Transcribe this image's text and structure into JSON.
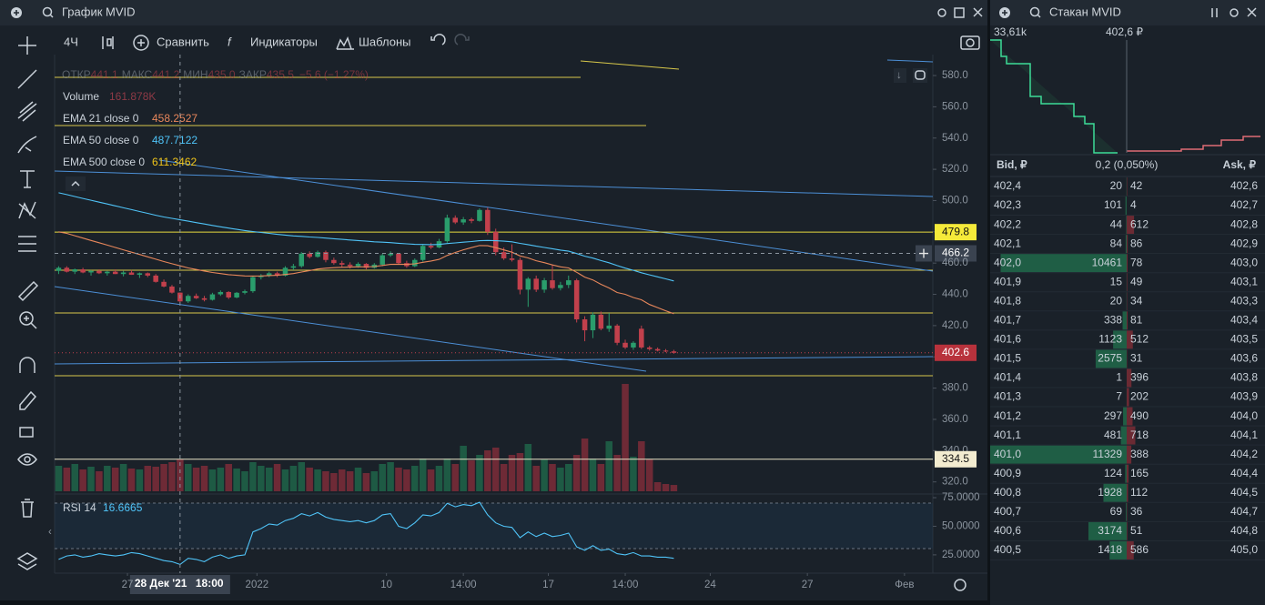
{
  "chart_widget": {
    "title": "График MVID",
    "toolbar": {
      "interval": "4Ч",
      "compare": "Сравнить",
      "indicators": "Индикаторы",
      "templates": "Шаблоны"
    },
    "legend": {
      "open_label": "ОТКР",
      "open": "441.1",
      "high_label": "МАКС",
      "high": "441.2",
      "low_label": "МИН",
      "low": "435.0",
      "close_label": "ЗАКР",
      "close": "435.5",
      "change": "−5.6 (−1.27%)"
    }
  },
  "chart_data": {
    "type": "candlestick",
    "x": [
      0,
      1,
      2,
      3,
      4,
      5,
      6,
      7,
      8,
      9,
      10,
      11,
      12,
      13,
      14,
      15,
      16,
      17,
      18,
      19,
      20,
      21,
      22,
      23,
      24,
      25,
      26,
      27,
      28,
      29,
      30,
      31,
      32,
      33,
      34,
      35,
      36,
      37,
      38,
      39,
      40,
      41,
      42,
      43,
      44,
      45,
      46,
      47,
      48,
      49,
      50,
      51,
      52,
      53,
      54,
      55,
      56,
      57,
      58,
      59,
      60,
      61,
      62,
      63,
      64,
      65,
      66,
      67,
      68,
      69,
      70,
      71,
      72,
      73,
      74,
      75,
      76
    ],
    "open": [
      455,
      457,
      454.5,
      456,
      454,
      455,
      453.5,
      454.5,
      453,
      454,
      452.5,
      453.5,
      452,
      448,
      445,
      441.1,
      435.5,
      439,
      437.5,
      436.5,
      440,
      441.5,
      438,
      441,
      442,
      451,
      452,
      453.5,
      452,
      457,
      458,
      466,
      464,
      467,
      462,
      460,
      459,
      458,
      459.5,
      457,
      459,
      465,
      466,
      460,
      458,
      462,
      471,
      470,
      474,
      489,
      486,
      488,
      487,
      494,
      480,
      467,
      463,
      462,
      443,
      450,
      443,
      449,
      444,
      446,
      449,
      424,
      417,
      427,
      418,
      420,
      409,
      406,
      418,
      406,
      405,
      404,
      403.5
    ],
    "high": [
      458,
      458,
      456.5,
      457,
      455.5,
      456,
      455,
      456,
      455,
      455.5,
      454,
      454,
      453,
      449.5,
      446,
      441.2,
      440,
      440.5,
      439,
      441,
      442.5,
      442,
      441.5,
      443,
      452,
      453,
      454.5,
      454.5,
      458,
      459.5,
      467,
      467.5,
      468,
      468,
      463.5,
      461.5,
      460.5,
      460.5,
      460,
      460,
      466,
      467.5,
      466.5,
      461.5,
      463,
      472,
      473,
      475.5,
      491,
      490.5,
      489.5,
      489,
      495,
      495.5,
      482,
      470,
      472,
      463.5,
      451,
      452,
      450.5,
      459,
      448,
      452,
      450,
      426,
      428.5,
      429,
      428,
      421,
      411,
      410,
      420,
      407,
      406,
      405,
      404.5
    ],
    "low": [
      453,
      454,
      453,
      453.5,
      452,
      453,
      452,
      453,
      451.5,
      452.5,
      450.5,
      451,
      447.5,
      444.5,
      440.5,
      435,
      434.5,
      437,
      435.5,
      436,
      439,
      437,
      437.5,
      440,
      441,
      449.5,
      451,
      451,
      451.5,
      455.5,
      457,
      463,
      463.5,
      460.5,
      459,
      457.5,
      456.5,
      457,
      456,
      456.5,
      458,
      464,
      459,
      457,
      457.5,
      461,
      469,
      469.5,
      473,
      485,
      484.5,
      485.5,
      486.5,
      478,
      465,
      462,
      461,
      440,
      432,
      441.5,
      441,
      443,
      442.5,
      444,
      422,
      410,
      412,
      417,
      416,
      407.5,
      405,
      404.5,
      405,
      404,
      403.5,
      403,
      402
    ],
    "close": [
      457,
      454.5,
      456,
      454,
      455,
      453.5,
      454.5,
      453,
      454,
      452.5,
      453.5,
      452,
      448,
      445,
      441.1,
      435.5,
      439,
      437.5,
      436.5,
      440,
      441.5,
      438,
      441,
      442,
      451,
      452,
      453.5,
      452,
      457,
      458,
      466,
      464,
      467,
      462,
      460,
      459,
      458,
      459.5,
      457,
      459,
      465,
      466,
      460,
      458,
      462,
      471,
      470,
      474,
      489,
      486,
      488,
      487,
      494,
      480,
      467,
      463,
      462,
      443,
      450,
      443,
      449,
      444,
      446,
      449,
      424,
      417,
      427,
      418,
      420,
      409,
      406,
      409,
      406,
      405,
      404,
      403.5,
      402.6
    ],
    "up_color": "#2a9d6c",
    "down_color": "#c2404c",
    "xlim": [
      -0.5,
      108
    ],
    "xticks": [
      {
        "value": 8.5,
        "label": "27"
      },
      {
        "value": 24.5,
        "label": "2022"
      },
      {
        "value": 40.5,
        "label": "10"
      },
      {
        "value": 50,
        "label": "14:00"
      },
      {
        "value": 60.5,
        "label": "17"
      },
      {
        "value": 70,
        "label": "14:00"
      },
      {
        "value": 80.5,
        "label": "24"
      },
      {
        "value": 92.5,
        "label": "27"
      },
      {
        "value": 104.5,
        "label": "Фев"
      }
    ],
    "ylim": [
      314,
      593.4
    ],
    "yticks": [
      {
        "value": 580,
        "label": "580.0"
      },
      {
        "value": 560,
        "label": "560.0"
      },
      {
        "value": 540,
        "label": "540.0"
      },
      {
        "value": 520,
        "label": "520.0"
      },
      {
        "value": 500,
        "label": "500.0"
      },
      {
        "value": 480,
        "label": "480.0"
      },
      {
        "value": 460,
        "label": "460.0"
      },
      {
        "value": 440,
        "label": "440.0"
      },
      {
        "value": 420,
        "label": "420.0"
      },
      {
        "value": 400,
        "label": "400.0"
      },
      {
        "value": 380,
        "label": "380.0"
      },
      {
        "value": 360,
        "label": "360.0"
      },
      {
        "value": 340,
        "label": "340.0"
      },
      {
        "value": 320,
        "label": "320.0"
      }
    ],
    "levels": [
      479.8,
      334.5
    ],
    "crosshair": {
      "x": 15,
      "x_label": "28 Дек '21",
      "time_label": "18:00",
      "price": 466.2
    },
    "volume": {
      "name": "Volume",
      "value_label": "161.878K",
      "up_color": "#1e5a44",
      "down_color": "#6e2a36",
      "values": [
        652400,
        605800,
        699000,
        559200,
        629100,
        512600,
        652400,
        605800,
        699000,
        582500,
        559200,
        652400,
        629100,
        699000,
        745600,
        815500,
        699000,
        605800,
        652400,
        559200,
        605800,
        699000,
        582500,
        512600,
        745600,
        652400,
        605800,
        699000,
        559200,
        652400,
        745600,
        605800,
        559200,
        512600,
        466000,
        559200,
        512600,
        605800,
        466000,
        512600,
        699000,
        745600,
        605800,
        559200,
        652400,
        838800,
        559200,
        652400,
        838800,
        699000,
        1165000,
        792200,
        932000,
        1048500,
        1118400,
        699000,
        932000,
        978600,
        1211600,
        652400,
        815500,
        699000,
        605800,
        699000,
        932000,
        1351400,
        838800,
        699000,
        1281500,
        932000,
        2749400,
        885400,
        1281500,
        815500,
        233000,
        186400,
        161878
      ]
    },
    "ema": [
      {
        "name": "EMA 21 close 0",
        "value_label": "458.2527",
        "color": "#e8875b",
        "values": [
          480,
          479,
          477.5,
          476,
          474.5,
          473,
          471.5,
          470,
          468.5,
          467,
          465.5,
          464,
          462.5,
          461,
          459.6,
          458.2527,
          456.9,
          455.9,
          454.9,
          454,
          453.3,
          452.6,
          452.2,
          451.8,
          451.7,
          451.8,
          452,
          452.2,
          452.7,
          453.3,
          454.3,
          455.2,
          456.2,
          456.7,
          457.1,
          457.3,
          457.4,
          457.6,
          457.6,
          457.8,
          458.5,
          459.2,
          459.3,
          459.2,
          459.5,
          460.5,
          461.3,
          462.4,
          464.9,
          466.8,
          468.5,
          469.9,
          471.2,
          471.1,
          469.9,
          468.4,
          467,
          464.6,
          463.3,
          461.5,
          460.3,
          458.8,
          457.6,
          456.9,
          454.1,
          451,
          449.2,
          446.4,
          444.1,
          441.2,
          440,
          438,
          436.5,
          433.5,
          431.5,
          429.5,
          427.6
        ]
      },
      {
        "name": "EMA 50 close 0",
        "value_label": "487.7122",
        "color": "#4fc3f7",
        "values": [
          505,
          503.8,
          502.6,
          501.4,
          500.2,
          499,
          497.8,
          496.6,
          495.4,
          494.2,
          493,
          491.8,
          490.6,
          489.5,
          488.6,
          487.7122,
          486.8,
          485.9,
          485,
          484.1,
          483.2,
          482.4,
          481.6,
          480.8,
          480.2,
          479.6,
          479,
          478.4,
          477.9,
          477.4,
          477.1,
          476.7,
          476.4,
          476,
          475.6,
          475.2,
          474.8,
          474.4,
          474,
          473.6,
          473.4,
          473.1,
          472.7,
          472.3,
          472,
          471.9,
          471.8,
          471.9,
          472.5,
          472.9,
          473.4,
          473.8,
          474.3,
          474.5,
          474.3,
          474,
          473.6,
          472.6,
          471.8,
          470.8,
          470,
          469.2,
          468.3,
          467.6,
          466.1,
          464.4,
          463.2,
          461.6,
          460.2,
          458.4,
          456.8,
          455.4,
          453.8,
          452.5,
          451.2,
          449.9,
          448.6
        ]
      },
      {
        "name": "EMA 500 close 0",
        "value_label": "611.3462",
        "color": "#f0c419"
      }
    ],
    "rsi": {
      "name": "RSI 14",
      "value_label": "16.6665",
      "color": "#4fc3f7",
      "ylim": [
        9,
        78.2
      ],
      "yticks": [
        {
          "value": 75,
          "label": "75.0000"
        },
        {
          "value": 50,
          "label": "50.0000"
        },
        {
          "value": 25,
          "label": "25.0000"
        }
      ],
      "values": [
        21,
        24,
        25,
        23,
        24,
        26,
        25,
        24,
        25,
        27,
        26,
        24,
        22,
        20,
        19,
        16.6665,
        22,
        21,
        19,
        23,
        25,
        22,
        24,
        25,
        45,
        48,
        52,
        51,
        55,
        57,
        61,
        59,
        62,
        58,
        56,
        55,
        54,
        55,
        53,
        55,
        60,
        61,
        50,
        48,
        53,
        60,
        59,
        62,
        70,
        67,
        69,
        68,
        71,
        60,
        53,
        50,
        49,
        40,
        45,
        41,
        44,
        41,
        42,
        44,
        32,
        29,
        33,
        29,
        30,
        26,
        25,
        27,
        24,
        24,
        23,
        23,
        22
      ]
    }
  },
  "order_book": {
    "title": "Стакан MVID",
    "depth_volume": "33,61k",
    "depth_price": "402,6 ₽",
    "bid_header": "Bid, ₽",
    "spread": "0,2 (0,050%)",
    "ask_header": "Ask, ₽",
    "rows": [
      {
        "bid_price": "402,4",
        "bid_volume": 20,
        "ask_volume": 42,
        "ask_price": "402,6"
      },
      {
        "bid_price": "402,3",
        "bid_volume": 101,
        "ask_volume": 4,
        "ask_price": "402,7"
      },
      {
        "bid_price": "402,2",
        "bid_volume": 44,
        "ask_volume": 612,
        "ask_price": "402,8"
      },
      {
        "bid_price": "402,1",
        "bid_volume": 84,
        "ask_volume": 86,
        "ask_price": "402,9"
      },
      {
        "bid_price": "402,0",
        "bid_volume": 10461,
        "ask_volume": 78,
        "ask_price": "403,0"
      },
      {
        "bid_price": "401,9",
        "bid_volume": 15,
        "ask_volume": 49,
        "ask_price": "403,1"
      },
      {
        "bid_price": "401,8",
        "bid_volume": 20,
        "ask_volume": 34,
        "ask_price": "403,3"
      },
      {
        "bid_price": "401,7",
        "bid_volume": 338,
        "ask_volume": 81,
        "ask_price": "403,4"
      },
      {
        "bid_price": "401,6",
        "bid_volume": 1123,
        "ask_volume": 512,
        "ask_price": "403,5"
      },
      {
        "bid_price": "401,5",
        "bid_volume": 2575,
        "ask_volume": 31,
        "ask_price": "403,6"
      },
      {
        "bid_price": "401,4",
        "bid_volume": 1,
        "ask_volume": 396,
        "ask_price": "403,8"
      },
      {
        "bid_price": "401,3",
        "bid_volume": 7,
        "ask_volume": 202,
        "ask_price": "403,9"
      },
      {
        "bid_price": "401,2",
        "bid_volume": 297,
        "ask_volume": 490,
        "ask_price": "404,0"
      },
      {
        "bid_price": "401,1",
        "bid_volume": 481,
        "ask_volume": 718,
        "ask_price": "404,1"
      },
      {
        "bid_price": "401,0",
        "bid_volume": 11329,
        "ask_volume": 388,
        "ask_price": "404,2"
      },
      {
        "bid_price": "400,9",
        "bid_volume": 124,
        "ask_volume": 165,
        "ask_price": "404,4"
      },
      {
        "bid_price": "400,8",
        "bid_volume": 1928,
        "ask_volume": 112,
        "ask_price": "404,5"
      },
      {
        "bid_price": "400,7",
        "bid_volume": 69,
        "ask_volume": 36,
        "ask_price": "404,7"
      },
      {
        "bid_price": "400,6",
        "bid_volume": 3174,
        "ask_volume": 51,
        "ask_price": "404,8"
      },
      {
        "bid_price": "400,5",
        "bid_volume": 1418,
        "ask_volume": 586,
        "ask_price": "405,0"
      }
    ]
  }
}
